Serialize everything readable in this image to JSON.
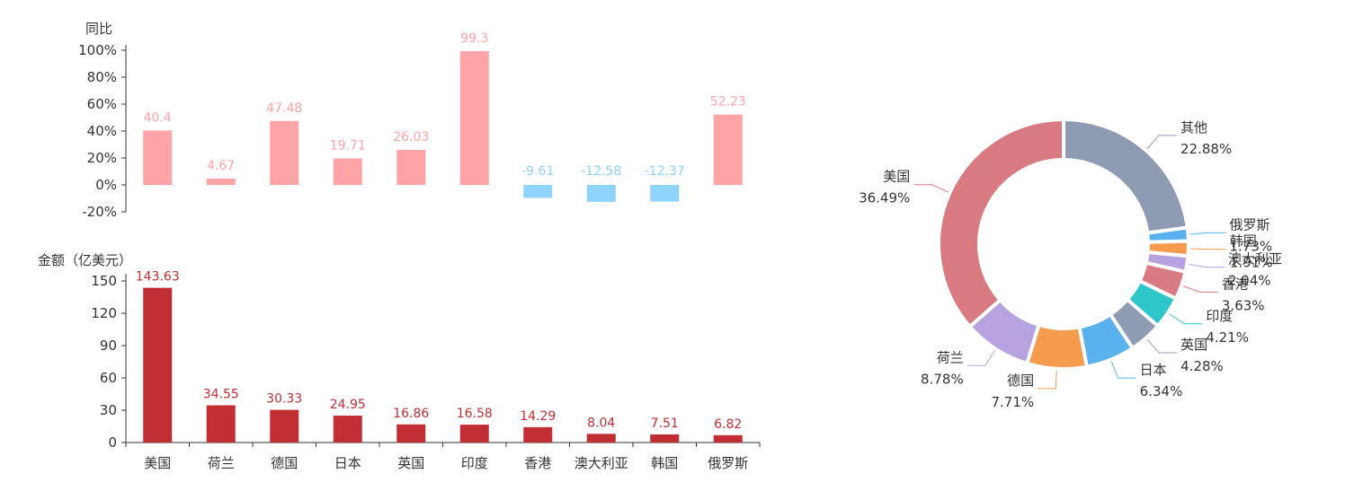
{
  "chart_data": [
    {
      "type": "bar",
      "ylabel": "同比",
      "categories": [
        "美国",
        "荷兰",
        "德国",
        "日本",
        "英国",
        "印度",
        "香港",
        "澳大利亚",
        "韩国",
        "俄罗斯"
      ],
      "values": [
        40.4,
        4.67,
        47.48,
        19.71,
        26.03,
        99.3,
        -9.61,
        -12.58,
        -12.37,
        52.23
      ],
      "value_labels": [
        "40.4",
        "4.67",
        "47.48",
        "19.71",
        "26.03",
        "99.3",
        "-9.61",
        "-12.58",
        "-12.37",
        "52.23"
      ],
      "yticks": [
        "100%",
        "80%",
        "60%",
        "40%",
        "20%",
        "0%",
        "-20%"
      ],
      "ylim": [
        -20,
        100
      ],
      "colors": {
        "positive": "#ffa4a6",
        "negative": "#8ed3fb"
      }
    },
    {
      "type": "bar",
      "ylabel": "金额（亿美元）",
      "categories": [
        "美国",
        "荷兰",
        "德国",
        "日本",
        "英国",
        "印度",
        "香港",
        "澳大利亚",
        "韩国",
        "俄罗斯"
      ],
      "values": [
        143.63,
        34.55,
        30.33,
        24.95,
        16.86,
        16.58,
        14.29,
        8.04,
        7.51,
        6.82
      ],
      "value_labels": [
        "143.63",
        "34.55",
        "30.33",
        "24.95",
        "16.86",
        "16.58",
        "14.29",
        "8.04",
        "7.51",
        "6.82"
      ],
      "yticks": [
        "150",
        "120",
        "90",
        "60",
        "30",
        "0"
      ],
      "ylim": [
        0,
        150
      ],
      "colors": {
        "bar": "#c12e34"
      }
    },
    {
      "type": "pie",
      "donut": true,
      "slices": [
        {
          "name": "其他",
          "value": 22.88,
          "label": "22.88%",
          "color": "#8f9bb3"
        },
        {
          "name": "俄罗斯",
          "value": 1.73,
          "label": "1.73%",
          "color": "#5ab1ef"
        },
        {
          "name": "韩国",
          "value": 1.91,
          "label": "1.91%",
          "color": "#f59b4e"
        },
        {
          "name": "澳大利亚",
          "value": 2.04,
          "label": "2.04%",
          "color": "#b6a2de"
        },
        {
          "name": "香港",
          "value": 3.63,
          "label": "3.63%",
          "color": "#d87a80"
        },
        {
          "name": "印度",
          "value": 4.21,
          "label": "4.21%",
          "color": "#2ec7c9"
        },
        {
          "name": "英国",
          "value": 4.28,
          "label": "4.28%",
          "color": "#8f9bb3"
        },
        {
          "name": "日本",
          "value": 6.34,
          "label": "6.34%",
          "color": "#5ab1ef"
        },
        {
          "name": "德国",
          "value": 7.71,
          "label": "7.71%",
          "color": "#f59b4e"
        },
        {
          "name": "荷兰",
          "value": 8.78,
          "label": "8.78%",
          "color": "#b6a2de"
        },
        {
          "name": "美国",
          "value": 36.49,
          "label": "36.49%",
          "color": "#d87a80"
        }
      ]
    }
  ]
}
